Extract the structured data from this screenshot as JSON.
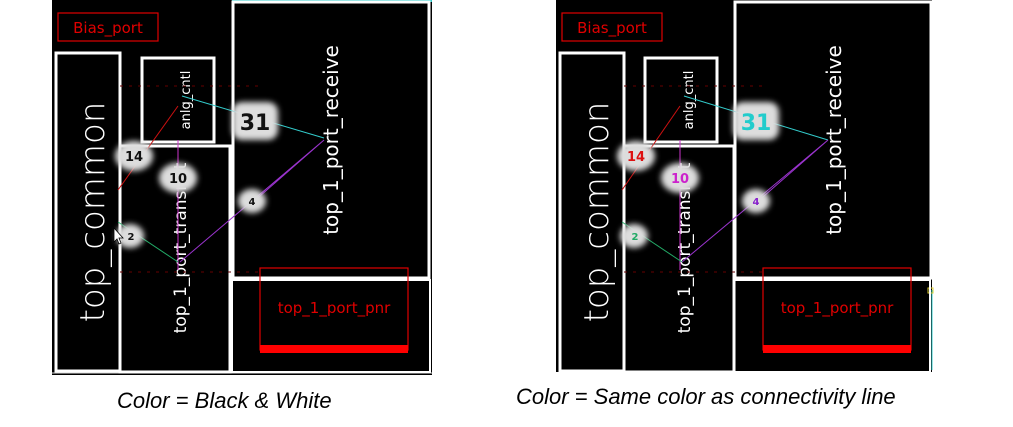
{
  "panels": [
    {
      "caption": "Color = Black & White",
      "mode": "bw",
      "labels": {
        "bias_port": "Bias_port",
        "top_common": "top_common",
        "anlg_cntl": "anlg_cntl",
        "top_1_port_transmit": "top_1_port_transmit",
        "top_1_port_receive": "top_1_port_receive",
        "top_1_port_pnr": "top_1_port_pnr"
      },
      "badges": {
        "b31": "31",
        "b14": "14",
        "b10": "10",
        "b4": "4",
        "b2": "2"
      }
    },
    {
      "caption": "Color = Same color as connectivity line",
      "mode": "color",
      "labels": {
        "bias_port": "Bias_port",
        "top_common": "top_common",
        "anlg_cntl": "anlg_cntl",
        "top_1_port_transmit": "top_1_port_transmit",
        "top_1_port_receive": "top_1_port_receive",
        "top_1_port_pnr": "top_1_port_pnr"
      },
      "badges": {
        "b31": "31",
        "b14": "14",
        "b10": "10",
        "b4": "4",
        "b2": "2"
      }
    }
  ],
  "colors": {
    "background": "#000000",
    "block_outline": "#ffffff",
    "port_outline": "#e00000",
    "pnr_bar": "#ff0000",
    "line_31": "#33cccc",
    "line_14": "#cc1111",
    "line_10": "#cc33cc",
    "line_4": "#9933cc",
    "line_2": "#22aa66",
    "frame_edge": "#33cccc"
  }
}
